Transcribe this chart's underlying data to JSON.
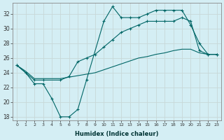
{
  "xlabel": "Humidex (Indice chaleur)",
  "bg_color": "#d4eef4",
  "line_color": "#006666",
  "grid_color": "#c8d8d8",
  "xlim": [
    -0.5,
    23.5
  ],
  "ylim": [
    17.5,
    33.5
  ],
  "yticks": [
    18,
    20,
    22,
    24,
    26,
    28,
    30,
    32
  ],
  "xticks": [
    0,
    1,
    2,
    3,
    4,
    5,
    6,
    7,
    8,
    9,
    10,
    11,
    12,
    13,
    14,
    15,
    16,
    17,
    18,
    19,
    20,
    21,
    22,
    23
  ],
  "line1_x": [
    0,
    1,
    2,
    3,
    4,
    5,
    6,
    7,
    8,
    10,
    11,
    12,
    13,
    14,
    15,
    16,
    17,
    18,
    19,
    20,
    21,
    22,
    23
  ],
  "line1_y": [
    25.0,
    24.0,
    22.5,
    22.5,
    20.5,
    18.0,
    18.0,
    19.0,
    23.0,
    31.0,
    33.0,
    31.5,
    31.5,
    31.5,
    32.0,
    32.5,
    32.5,
    32.5,
    32.5,
    30.5,
    28.0,
    26.5,
    26.5
  ],
  "line2_x": [
    0,
    2,
    3,
    5,
    6,
    7,
    8,
    9,
    10,
    11,
    12,
    13,
    14,
    15,
    16,
    17,
    18,
    19,
    20,
    21,
    22,
    23
  ],
  "line2_y": [
    25.0,
    23.0,
    23.0,
    23.0,
    23.5,
    25.5,
    26.0,
    26.5,
    27.5,
    28.5,
    29.5,
    30.0,
    30.5,
    31.0,
    31.0,
    31.0,
    31.0,
    31.5,
    31.0,
    27.0,
    26.5,
    26.5
  ],
  "line3_x": [
    0,
    1,
    2,
    3,
    4,
    5,
    6,
    7,
    8,
    9,
    10,
    11,
    12,
    13,
    14,
    15,
    16,
    17,
    18,
    19,
    20,
    21,
    22,
    23
  ],
  "line3_y": [
    25.0,
    24.2,
    23.2,
    23.2,
    23.2,
    23.2,
    23.4,
    23.6,
    23.8,
    24.0,
    24.4,
    24.8,
    25.2,
    25.6,
    26.0,
    26.2,
    26.5,
    26.7,
    27.0,
    27.2,
    27.2,
    26.7,
    26.5,
    26.5
  ]
}
